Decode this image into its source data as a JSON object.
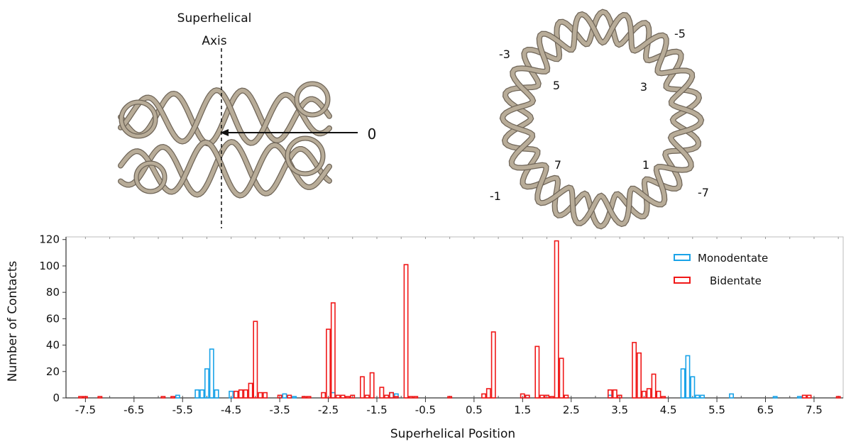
{
  "figure": {
    "side_view": {
      "axis_label_line1": "Superhelical",
      "axis_label_line2": "Axis",
      "arrow_label": "0"
    },
    "top_view": {
      "labels": [
        "-5",
        "-3",
        "5",
        "3",
        "7",
        "1",
        "-1",
        "-7"
      ]
    },
    "dna_color": "#b8ac98"
  },
  "chart_data": {
    "type": "bar",
    "xlabel": "Superhelical Position",
    "ylabel": "Number of Contacts",
    "xlim": [
      -7.9,
      8.1
    ],
    "ylim": [
      0,
      122
    ],
    "xticks": [
      "-7.5",
      "-6.5",
      "-5.5",
      "-4.5",
      "-3.5",
      "-2.5",
      "-1.5",
      "-0.5",
      "0.5",
      "1.5",
      "2.5",
      "3.5",
      "4.5",
      "5.5",
      "6.5",
      "7.5"
    ],
    "yticks": [
      "0",
      "20",
      "40",
      "60",
      "80",
      "100",
      "120"
    ],
    "legend_position": "top-right",
    "series": [
      {
        "name": "Monodentate",
        "color": "#1aa3e8",
        "x": [
          -5.6,
          -5.2,
          -5.1,
          -5.0,
          -4.9,
          -4.8,
          -4.5,
          -3.4,
          -3.2,
          -2.4,
          -1.2,
          -1.1,
          1.6,
          3.3,
          4.8,
          4.9,
          5.0,
          5.1,
          5.2,
          5.8,
          6.7,
          7.2
        ],
        "values": [
          2,
          6,
          6,
          22,
          37,
          6,
          5,
          3,
          1,
          4,
          4,
          3,
          2,
          2,
          22,
          32,
          16,
          2,
          2,
          3,
          1,
          1
        ]
      },
      {
        "name": "Bidentate",
        "color": "#f01818",
        "x": [
          -7.6,
          -7.5,
          -7.2,
          -5.9,
          -5.7,
          -4.4,
          -4.3,
          -4.2,
          -4.1,
          -4.0,
          -3.9,
          -3.8,
          -3.5,
          -3.3,
          -3.0,
          -2.9,
          -2.6,
          -2.5,
          -2.4,
          -2.3,
          -2.2,
          -2.1,
          -2.0,
          -1.8,
          -1.7,
          -1.6,
          -1.4,
          -1.3,
          -1.2,
          -1.1,
          -0.9,
          -0.8,
          -0.7,
          0.0,
          0.7,
          0.8,
          0.9,
          1.5,
          1.6,
          1.8,
          1.9,
          2.0,
          2.1,
          2.2,
          2.3,
          2.4,
          3.3,
          3.4,
          3.5,
          3.8,
          3.9,
          4.0,
          4.1,
          4.2,
          4.3,
          4.4,
          7.3,
          7.4,
          8.0
        ],
        "values": [
          1,
          1,
          1,
          1,
          1,
          5,
          6,
          6,
          11,
          58,
          4,
          4,
          2,
          2,
          1,
          1,
          4,
          52,
          72,
          2,
          2,
          1,
          2,
          16,
          2,
          19,
          8,
          2,
          4,
          1,
          101,
          1,
          1,
          1,
          3,
          7,
          50,
          3,
          2,
          39,
          2,
          2,
          1,
          119,
          30,
          2,
          6,
          6,
          2,
          42,
          34,
          5,
          7,
          18,
          5,
          1,
          2,
          2,
          1
        ]
      }
    ]
  }
}
